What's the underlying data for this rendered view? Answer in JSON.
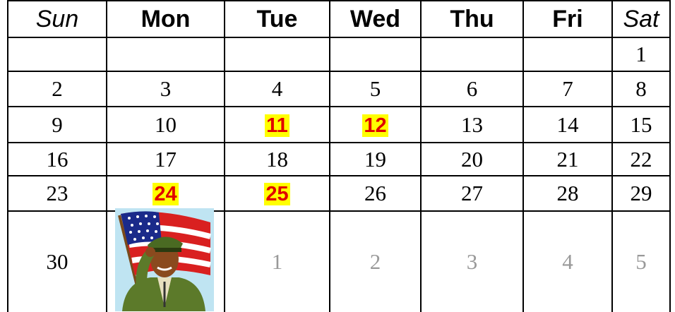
{
  "table": {
    "header": [
      "Sun",
      "Mon",
      "Tue",
      "Wed",
      "Thu",
      "Fri",
      "Sat"
    ],
    "rows": [
      [
        null,
        null,
        null,
        null,
        null,
        null,
        "1"
      ],
      [
        "2",
        "3",
        "4",
        "5",
        "6",
        "7",
        "8"
      ],
      [
        "9",
        "10",
        "11",
        "12",
        "13",
        "14",
        "15"
      ],
      [
        "16",
        "17",
        "18",
        "19",
        "20",
        "21",
        "22"
      ],
      [
        "23",
        "24",
        "25",
        "26",
        "27",
        "28",
        "29"
      ],
      [
        "30",
        null,
        "1",
        "2",
        "3",
        "4",
        "5"
      ]
    ]
  }
}
